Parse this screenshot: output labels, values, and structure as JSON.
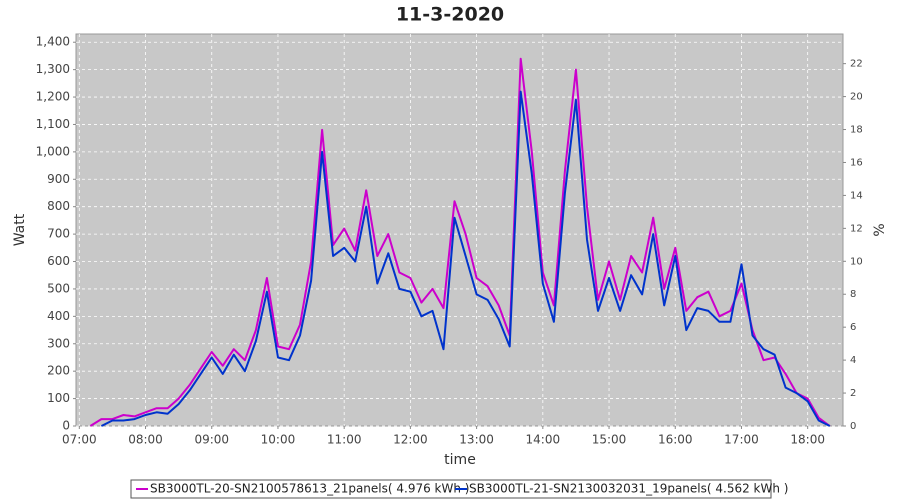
{
  "chart_data": {
    "type": "line",
    "title": "11-3-2020",
    "x_label": "time",
    "y_label": "Watt",
    "y2_label": "%",
    "x": [
      430,
      440,
      450,
      460,
      470,
      480,
      490,
      500,
      510,
      520,
      530,
      540,
      550,
      560,
      570,
      580,
      590,
      600,
      610,
      620,
      630,
      640,
      650,
      660,
      670,
      680,
      690,
      700,
      710,
      720,
      730,
      740,
      750,
      760,
      770,
      780,
      790,
      800,
      810,
      820,
      830,
      840,
      850,
      860,
      870,
      880,
      890,
      900,
      910,
      920,
      930,
      940,
      950,
      960,
      970,
      980,
      990,
      1000,
      1010,
      1020,
      1030,
      1040,
      1050,
      1060,
      1070,
      1080,
      1090,
      1100
    ],
    "series": [
      {
        "name": "SB3000TL-20-SN2100578613_21panels( 4.976 kWh )",
        "color": "#cc00cc",
        "values": [
          0,
          25,
          25,
          40,
          35,
          50,
          65,
          65,
          100,
          150,
          210,
          270,
          220,
          280,
          240,
          350,
          540,
          290,
          280,
          370,
          600,
          1080,
          660,
          720,
          640,
          860,
          620,
          700,
          560,
          540,
          450,
          500,
          430,
          820,
          700,
          540,
          510,
          440,
          330,
          1340,
          1000,
          560,
          440,
          930,
          1300,
          800,
          460,
          600,
          460,
          620,
          560,
          760,
          500,
          650,
          420,
          470,
          490,
          400,
          420,
          520,
          350,
          240,
          250,
          190,
          120,
          100,
          30,
          0
        ]
      },
      {
        "name": "SB3000TL-21-SN2130032031_19panels( 4.562 kWh )",
        "color": "#0033cc",
        "values": [
          null,
          0,
          20,
          20,
          25,
          40,
          50,
          45,
          80,
          130,
          190,
          250,
          190,
          260,
          200,
          310,
          490,
          250,
          240,
          330,
          530,
          1000,
          620,
          650,
          600,
          800,
          520,
          630,
          500,
          490,
          400,
          420,
          280,
          760,
          620,
          480,
          460,
          390,
          290,
          1220,
          920,
          520,
          380,
          850,
          1190,
          680,
          420,
          540,
          420,
          550,
          480,
          700,
          440,
          620,
          350,
          430,
          420,
          380,
          380,
          590,
          330,
          280,
          260,
          140,
          120,
          90,
          20,
          0
        ]
      }
    ],
    "xlim": [
      417,
      1112
    ],
    "xticks": [
      {
        "value": 420,
        "label": "07:00"
      },
      {
        "value": 480,
        "label": "08:00"
      },
      {
        "value": 540,
        "label": "09:00"
      },
      {
        "value": 600,
        "label": "10:00"
      },
      {
        "value": 660,
        "label": "11:00"
      },
      {
        "value": 720,
        "label": "12:00"
      },
      {
        "value": 780,
        "label": "13:00"
      },
      {
        "value": 840,
        "label": "14:00"
      },
      {
        "value": 900,
        "label": "15:00"
      },
      {
        "value": 960,
        "label": "16:00"
      },
      {
        "value": 1020,
        "label": "17:00"
      },
      {
        "value": 1080,
        "label": "18:00"
      }
    ],
    "ylim": [
      0,
      1430
    ],
    "yticks": [
      0,
      100,
      200,
      300,
      400,
      500,
      600,
      700,
      800,
      900,
      {
        "value": 1000,
        "label": "1,000"
      },
      {
        "value": 1100,
        "label": "1,100"
      },
      {
        "value": 1200,
        "label": "1,200"
      },
      {
        "value": 1300,
        "label": "1,300"
      },
      {
        "value": 1400,
        "label": "1,400"
      }
    ],
    "y2lim": [
      0,
      23.8
    ],
    "y2ticks": [
      0,
      2,
      4,
      6,
      8,
      10,
      12,
      14,
      16,
      18,
      20,
      22
    ],
    "grid": true
  }
}
